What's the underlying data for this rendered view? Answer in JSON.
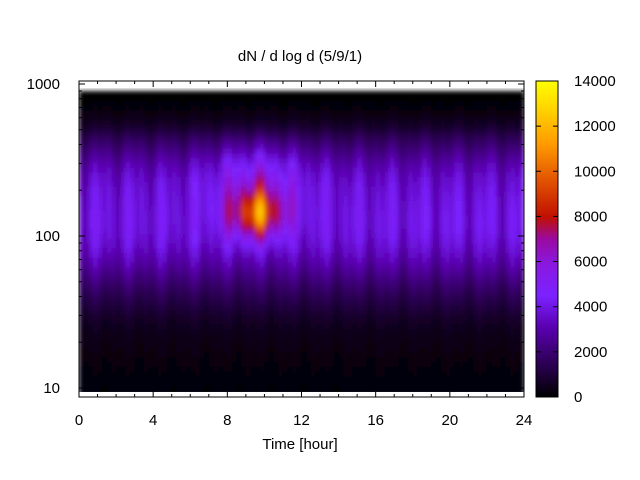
{
  "chart_data": {
    "type": "heatmap",
    "title": "dN / d log d (5/9/1)",
    "xlabel": "Time [hour]",
    "ylabel": "",
    "xlim": [
      0,
      24
    ],
    "ylim": [
      9,
      1000
    ],
    "y_scale": "log",
    "x_ticks": [
      "0",
      "4",
      "8",
      "12",
      "16",
      "20",
      "24"
    ],
    "y_ticks": [
      "10",
      "100",
      "1000"
    ],
    "colorbar": {
      "range": [
        0,
        14000
      ],
      "ticks": [
        "0",
        "2000",
        "4000",
        "6000",
        "8000",
        "10000",
        "12000",
        "14000"
      ],
      "colormap": "black-purple-blue-red-orange-yellow (gnuplot)"
    },
    "data_extent": {
      "x": [
        0,
        24
      ],
      "y": [
        9,
        900
      ]
    },
    "features": [
      {
        "description": "peak concentration",
        "x_center": 9.5,
        "y_center": 140,
        "value_max": 11500
      },
      {
        "description": "broad mode",
        "x_range": [
          0,
          24
        ],
        "y_center": 110,
        "value_approx": 4500
      },
      {
        "description": "low background",
        "y_range": [
          9,
          20
        ],
        "value_approx": 500
      }
    ]
  },
  "colors": {
    "black": "#000000",
    "purple": "#5a00b0",
    "blue": "#7b22ff",
    "red": "#c01000",
    "orange": "#ff9a00",
    "yellow": "#ffff00"
  }
}
